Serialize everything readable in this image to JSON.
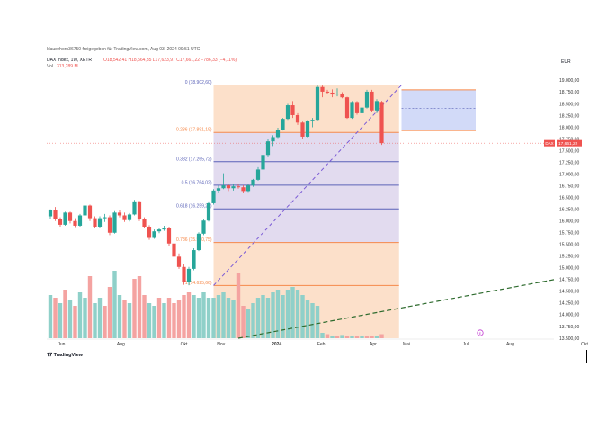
{
  "header": {
    "attribution": "klausvhorn36750 freigegeben für TradingView.com, Aug 03, 2024 09:51 UTC",
    "symbol": "DAX Index, 1W, XETR",
    "ohlc": "O18,542,41 H18,564,35 L17,623,97 C17,661,22 −786,33 (−4,11%)",
    "volume_label": "Vol",
    "volume_value": "313,289 M",
    "currency": "EUR",
    "price_tag_symbol": "DAX",
    "price_tag_value": "17,661,22",
    "logo": "TradingView"
  },
  "colors": {
    "up": "#26a69a",
    "down": "#ef5350",
    "vol_up": "#8fd0c9",
    "vol_down": "#f4a3a1",
    "fib_fill": "#fbd5b8",
    "fib_purple": "#d8cfea",
    "fib_line_orange": "#f6894a",
    "fib_line_blue": "#5b63b8",
    "channel_fill": "#cdd6f7",
    "trend_green": "#2e6b2e",
    "current_line": "#ef5350"
  },
  "chart_data": {
    "type": "candlestick",
    "y_axis": {
      "ticks": [
        "19.000,00",
        "18.750,00",
        "18.500,00",
        "18.250,00",
        "18.000,00",
        "17.750,00",
        "17.500,00",
        "17.250,00",
        "17.000,00",
        "16.750,00",
        "16.500,00",
        "16.250,00",
        "16.000,00",
        "15.750,00",
        "15.500,00",
        "15.250,00",
        "15.000,00",
        "14.750,00",
        "14.500,00",
        "14.250,00",
        "14.000,00",
        "13.750,00",
        "13.500,00"
      ],
      "tick_values": [
        19000,
        18750,
        18500,
        18250,
        18000,
        17750,
        17500,
        17250,
        17000,
        16750,
        16500,
        16250,
        16000,
        15750,
        15500,
        15250,
        15000,
        14750,
        14500,
        14250,
        14000,
        13750,
        13500
      ],
      "ylim": [
        13500,
        19200
      ]
    },
    "x_axis": {
      "ticks": [
        "Jun",
        "Aug",
        "Okt",
        "Nov",
        "2024",
        "Feb",
        "Apr",
        "Mai",
        "Jul",
        "Aug",
        "Okt"
      ],
      "tick_weeks": [
        3,
        19,
        36,
        46,
        61,
        73,
        87,
        96,
        112,
        124,
        144
      ]
    },
    "candles": [
      [
        16100,
        16250,
        16050,
        16230
      ],
      [
        16230,
        16300,
        16000,
        16050
      ],
      [
        16050,
        16080,
        15880,
        15920
      ],
      [
        15920,
        16200,
        15900,
        16180
      ],
      [
        16180,
        16200,
        15950,
        16000
      ],
      [
        16000,
        16060,
        15870,
        15900
      ],
      [
        15900,
        16150,
        15880,
        16120
      ],
      [
        16120,
        16360,
        16080,
        16330
      ],
      [
        16330,
        16350,
        16000,
        16060
      ],
      [
        16060,
        16100,
        15850,
        15880
      ],
      [
        15880,
        16100,
        15850,
        16060
      ],
      [
        16060,
        16150,
        15980,
        16080
      ],
      [
        16080,
        16120,
        15700,
        15750
      ],
      [
        15750,
        16210,
        15730,
        16180
      ],
      [
        16180,
        16230,
        16080,
        16120
      ],
      [
        16120,
        16180,
        15980,
        16020
      ],
      [
        16020,
        16170,
        15990,
        16140
      ],
      [
        16140,
        16450,
        16120,
        16420
      ],
      [
        16420,
        16430,
        16000,
        16050
      ],
      [
        16050,
        16080,
        15850,
        15880
      ],
      [
        15880,
        15910,
        15600,
        15640
      ],
      [
        15640,
        15820,
        15620,
        15780
      ],
      [
        15780,
        15860,
        15740,
        15820
      ],
      [
        15820,
        15900,
        15790,
        15860
      ],
      [
        15860,
        15880,
        15460,
        15520
      ],
      [
        15520,
        15560,
        15200,
        15240
      ],
      [
        15240,
        15310,
        14980,
        15020
      ],
      [
        15020,
        15080,
        14640,
        14690
      ],
      [
        14690,
        15020,
        14630,
        14980
      ],
      [
        14980,
        15420,
        14950,
        15380
      ],
      [
        15380,
        15760,
        15360,
        15730
      ],
      [
        15730,
        16050,
        15700,
        16010
      ],
      [
        16010,
        16420,
        15990,
        16380
      ],
      [
        16380,
        16680,
        16350,
        16650
      ],
      [
        16650,
        16760,
        16600,
        16700
      ],
      [
        16700,
        17020,
        16680,
        16760
      ],
      [
        16760,
        16800,
        16640,
        16700
      ],
      [
        16700,
        16790,
        16650,
        16740
      ],
      [
        16740,
        16800,
        16690,
        16720
      ],
      [
        16720,
        16760,
        16600,
        16640
      ],
      [
        16640,
        16790,
        16620,
        16760
      ],
      [
        16760,
        16900,
        16730,
        16880
      ],
      [
        16880,
        17150,
        16860,
        17100
      ],
      [
        17100,
        17440,
        17080,
        17410
      ],
      [
        17410,
        17750,
        17380,
        17700
      ],
      [
        17700,
        17830,
        17600,
        17790
      ],
      [
        17790,
        17990,
        17770,
        17950
      ],
      [
        17950,
        18200,
        17930,
        18180
      ],
      [
        18180,
        18500,
        18160,
        18470
      ],
      [
        18470,
        18560,
        18200,
        18260
      ],
      [
        18260,
        18300,
        18050,
        18100
      ],
      [
        18100,
        18120,
        17760,
        17800
      ],
      [
        17800,
        18160,
        17780,
        18130
      ],
      [
        18130,
        18200,
        18000,
        18160
      ],
      [
        18160,
        18900,
        18140,
        18860
      ],
      [
        18860,
        18890,
        18640,
        18760
      ],
      [
        18760,
        18800,
        18700,
        18740
      ],
      [
        18740,
        18810,
        18640,
        18700
      ],
      [
        18700,
        18830,
        18660,
        18720
      ],
      [
        18720,
        18750,
        18620,
        18640
      ],
      [
        18640,
        18650,
        18180,
        18200
      ],
      [
        18200,
        18560,
        18180,
        18540
      ],
      [
        18540,
        18560,
        18270,
        18300
      ],
      [
        18300,
        18430,
        18240,
        18420
      ],
      [
        18420,
        18800,
        18400,
        18760
      ],
      [
        18760,
        18800,
        18320,
        18360
      ],
      [
        18360,
        18600,
        18300,
        18560
      ],
      [
        18542,
        18564,
        17624,
        17661
      ]
    ],
    "volume": [
      [
        1.6,
        1
      ],
      [
        1.5,
        0
      ],
      [
        1.3,
        1
      ],
      [
        1.8,
        0
      ],
      [
        1.4,
        1
      ],
      [
        1.2,
        0
      ],
      [
        1.7,
        1
      ],
      [
        1.5,
        1
      ],
      [
        2.3,
        0
      ],
      [
        1.3,
        1
      ],
      [
        1.5,
        1
      ],
      [
        1.2,
        0
      ],
      [
        1.9,
        0
      ],
      [
        2.5,
        1
      ],
      [
        1.6,
        1
      ],
      [
        1.4,
        0
      ],
      [
        1.3,
        1
      ],
      [
        2.2,
        0
      ],
      [
        2.3,
        0
      ],
      [
        1.6,
        0
      ],
      [
        1.3,
        1
      ],
      [
        1.2,
        1
      ],
      [
        1.5,
        0
      ],
      [
        1.3,
        1
      ],
      [
        1.5,
        0
      ],
      [
        1.3,
        0
      ],
      [
        1.4,
        0
      ],
      [
        1.6,
        0
      ],
      [
        1.7,
        0
      ],
      [
        1.6,
        1
      ],
      [
        1.5,
        1
      ],
      [
        1.7,
        1
      ],
      [
        1.5,
        1
      ],
      [
        1.5,
        1
      ],
      [
        1.6,
        1
      ],
      [
        1.7,
        1
      ],
      [
        1.5,
        1
      ],
      [
        1.4,
        1
      ],
      [
        2.4,
        0
      ],
      [
        1.2,
        0
      ],
      [
        1.1,
        1
      ],
      [
        1.3,
        1
      ],
      [
        1.5,
        1
      ],
      [
        1.6,
        1
      ],
      [
        1.5,
        1
      ],
      [
        1.7,
        1
      ],
      [
        1.8,
        1
      ],
      [
        1.6,
        1
      ],
      [
        1.8,
        1
      ],
      [
        1.9,
        1
      ],
      [
        1.8,
        1
      ],
      [
        1.6,
        1
      ],
      [
        1.4,
        1
      ],
      [
        1.3,
        1
      ],
      [
        1.2,
        1
      ],
      [
        0.2,
        1
      ],
      [
        0.15,
        0
      ],
      [
        0.1,
        1
      ],
      [
        0.1,
        0
      ],
      [
        0.12,
        1
      ],
      [
        0.1,
        0
      ],
      [
        0.1,
        1
      ],
      [
        0.1,
        0
      ],
      [
        0.1,
        1
      ],
      [
        0.1,
        0
      ],
      [
        0.1,
        0
      ],
      [
        0.1,
        1
      ],
      [
        0.15,
        0
      ]
    ],
    "fibonacci": [
      {
        "label": "0 (18.902,60)",
        "value": 18902.6
      },
      {
        "label": "0.236 (17.891,19)",
        "value": 17891.19
      },
      {
        "label": "0.382 (17.265,72)",
        "value": 17265.72
      },
      {
        "label": "0.5 (16.764,02)",
        "value": 16764.02
      },
      {
        "label": "0.618 (16.259,21)",
        "value": 16259.21
      },
      {
        "label": "0.786 (15.540,75)",
        "value": 15540.75
      },
      {
        "label": "1 (14.625,66)",
        "value": 14625.66
      }
    ],
    "channel": {
      "top": 18800,
      "mid": 18400,
      "bottom": 17930
    },
    "last_price": 17661.22,
    "event_marker": "E"
  }
}
